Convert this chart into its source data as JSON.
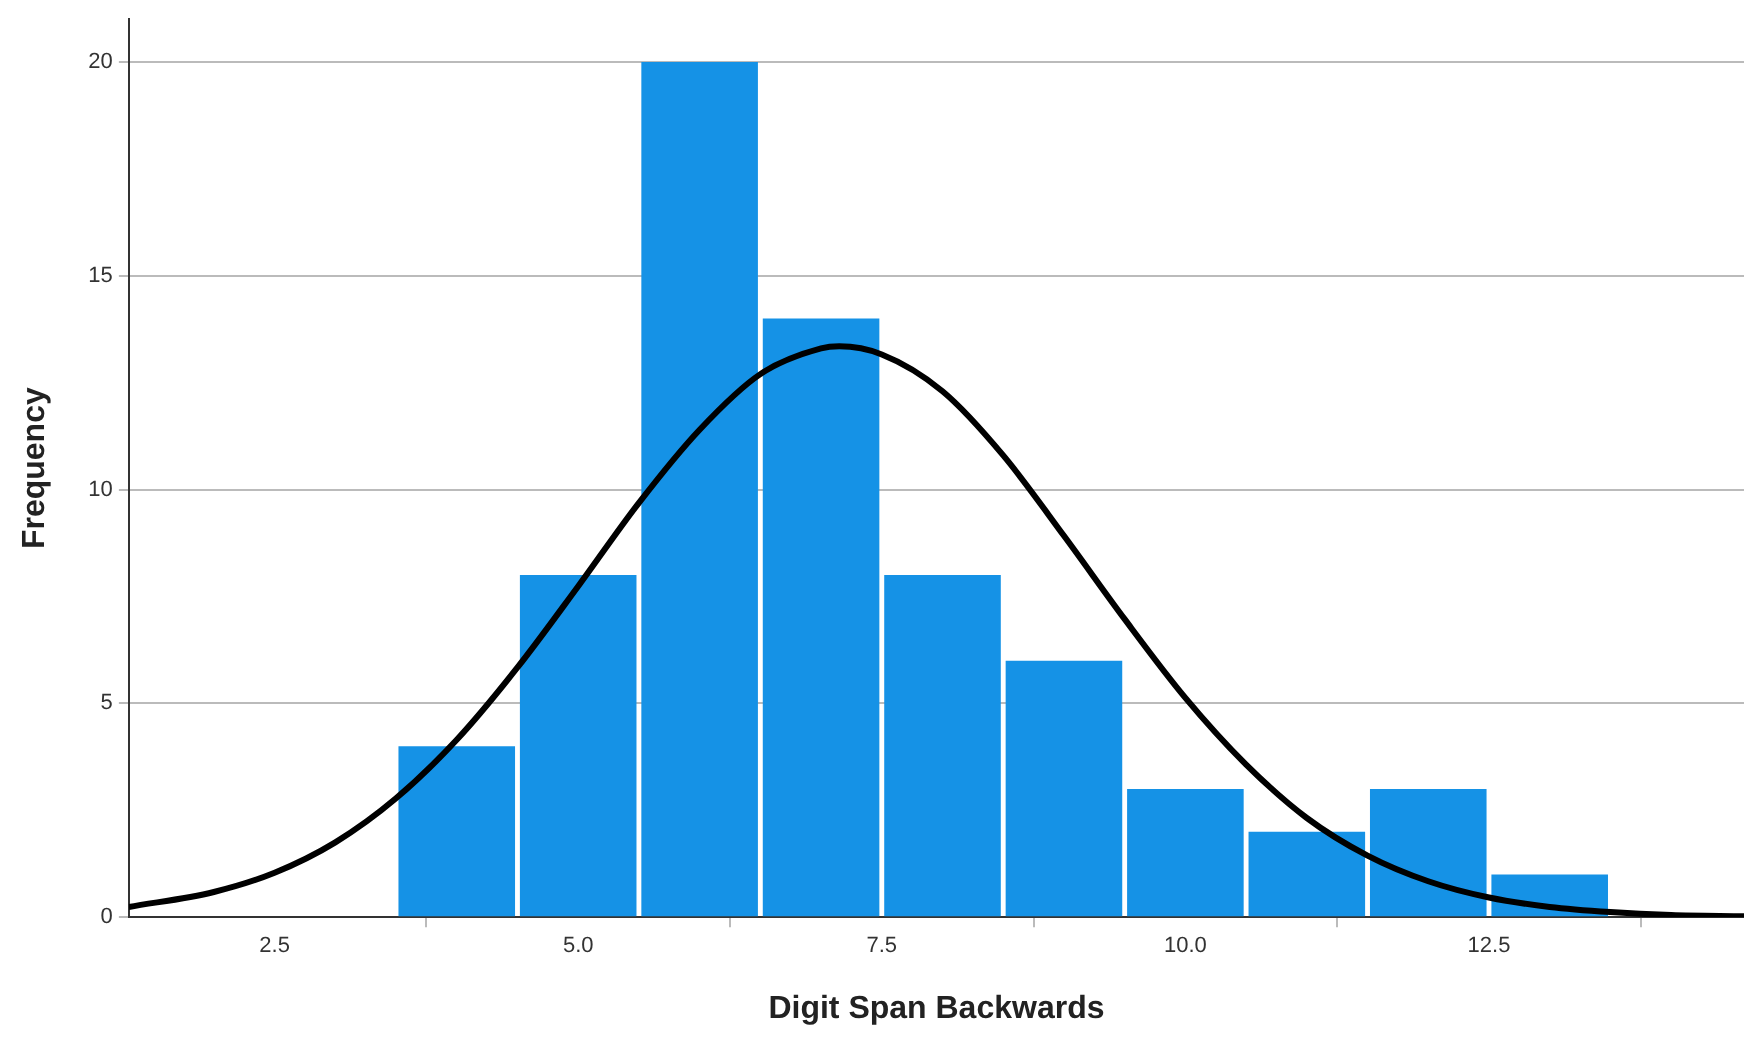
{
  "chart_data": {
    "type": "histogram",
    "xlabel": "Digit Span Backwards",
    "ylabel": "Frequency",
    "bins": [
      3.5,
      4.5,
      5.5,
      6.5,
      7.5,
      8.5,
      9.5,
      10.5,
      11.5,
      12.5,
      13.5
    ],
    "values": [
      4,
      8,
      20,
      14,
      8,
      6,
      3,
      2,
      3,
      1
    ],
    "color": "#1592e6",
    "series": [
      {
        "type": "line",
        "color": "#000000",
        "x": [
          1.3,
          2,
          2.5,
          3,
          3.5,
          4,
          4.5,
          5,
          5.5,
          6,
          6.5,
          7,
          7.15,
          7.5,
          8,
          8.5,
          9,
          9.5,
          10,
          10.5,
          11,
          11.5,
          12,
          12.5,
          13,
          13.5,
          14,
          14.6
        ],
        "values": [
          0.24,
          0.59,
          1.04,
          1.75,
          2.78,
          4.15,
          5.84,
          7.74,
          9.69,
          11.4,
          12.7,
          13.3,
          13.35,
          13.16,
          12.3,
          10.8,
          8.92,
          6.97,
          5.13,
          3.57,
          2.32,
          1.44,
          0.84,
          0.46,
          0.24,
          0.12,
          0.05,
          0.02
        ]
      }
    ],
    "xlim": [
      1.3,
      14.6
    ],
    "ylim": [
      0,
      21
    ],
    "xticks": [
      2.5,
      {
        "value": 5,
        "label": "5.0"
      },
      7.5,
      {
        "value": 10,
        "label": "10.0"
      },
      12.5
    ],
    "yticks": [
      0,
      5,
      10,
      15,
      20
    ],
    "grid": "y",
    "legend": false,
    "marker": "none",
    "line_style": "solid"
  }
}
